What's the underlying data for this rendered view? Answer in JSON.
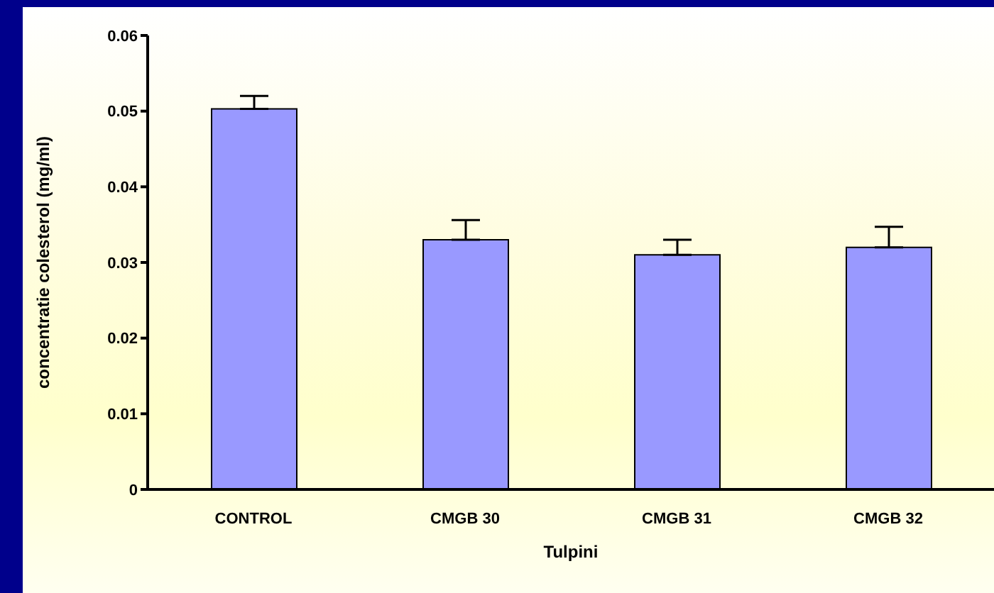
{
  "chart_data": {
    "type": "bar",
    "xlabel": "Tulpini",
    "ylabel": "concentratie colesterol (mg/ml)",
    "categories": [
      "CONTROL",
      "CMGB 30",
      "CMGB 31",
      "CMGB 32"
    ],
    "values": [
      0.0503,
      0.033,
      0.031,
      0.032
    ],
    "errors": [
      [
        0.0503,
        0.052
      ],
      [
        0.033,
        0.0356
      ],
      [
        0.031,
        0.033
      ],
      [
        0.032,
        0.0347
      ]
    ],
    "color": "#9999ff",
    "ylim": [
      0,
      0.06
    ],
    "yticks": [
      0,
      0.01,
      0.02,
      0.03,
      0.04,
      0.05,
      0.06
    ],
    "grid": false,
    "legend": false
  }
}
